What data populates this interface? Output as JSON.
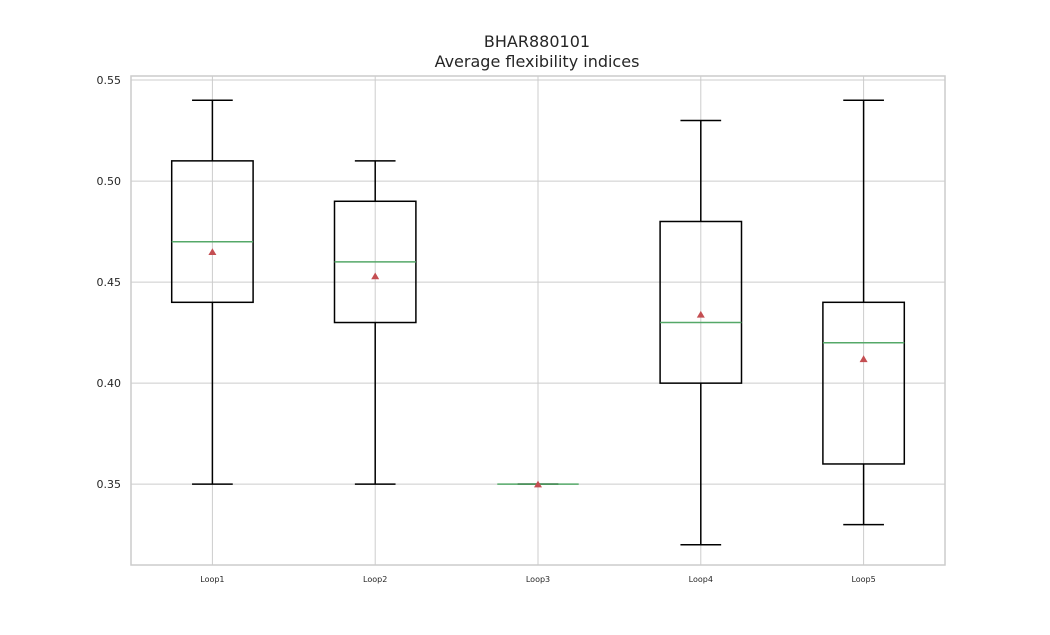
{
  "chart_data": {
    "type": "box",
    "title": "BHAR880101",
    "subtitle": "Average flexibility indices",
    "xlabel": "",
    "ylabel": "",
    "ylim": [
      0.31,
      0.552
    ],
    "yticks": [
      "0.35",
      "0.40",
      "0.45",
      "0.50",
      "0.55"
    ],
    "grid": true,
    "categories": [
      "Loop1",
      "Loop2",
      "Loop3",
      "Loop4",
      "Loop5"
    ],
    "boxes": [
      {
        "label": "Loop1",
        "whisker_low": 0.35,
        "q1": 0.44,
        "median": 0.47,
        "q3": 0.51,
        "whisker_high": 0.54,
        "mean": 0.465
      },
      {
        "label": "Loop2",
        "whisker_low": 0.35,
        "q1": 0.43,
        "median": 0.46,
        "q3": 0.49,
        "whisker_high": 0.51,
        "mean": 0.453
      },
      {
        "label": "Loop3",
        "whisker_low": 0.35,
        "q1": 0.35,
        "median": 0.35,
        "q3": 0.35,
        "whisker_high": 0.35,
        "mean": 0.35
      },
      {
        "label": "Loop4",
        "whisker_low": 0.32,
        "q1": 0.4,
        "median": 0.43,
        "q3": 0.48,
        "whisker_high": 0.53,
        "mean": 0.434
      },
      {
        "label": "Loop5",
        "whisker_low": 0.33,
        "q1": 0.36,
        "median": 0.42,
        "q3": 0.44,
        "whisker_high": 0.54,
        "mean": 0.412
      }
    ],
    "colors": {
      "box": "#000000",
      "median": "#55a868",
      "mean": "#c44e52",
      "grid": "#cccccc",
      "frame": "#cccccc"
    }
  }
}
